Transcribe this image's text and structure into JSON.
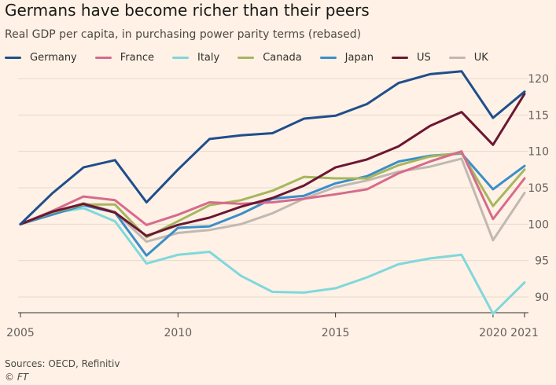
{
  "chart_data": {
    "type": "line",
    "title": "Germans have become richer than their peers",
    "subtitle": "Real GDP per capita, in purchasing power parity terms (rebased)",
    "x": [
      2005,
      2006,
      2007,
      2008,
      2009,
      2010,
      2011,
      2012,
      2013,
      2014,
      2015,
      2016,
      2017,
      2018,
      2019,
      2020,
      2021
    ],
    "x_ticks": [
      "2005",
      "2010",
      "2015",
      "2020",
      "2021"
    ],
    "y_ticks": [
      "90",
      "95",
      "100",
      "105",
      "110",
      "115",
      "120"
    ],
    "ylim": [
      88,
      121
    ],
    "xlabel": "",
    "ylabel": "",
    "grid": "horizontal",
    "series": [
      {
        "name": "Italy",
        "color": "#7fd8dc",
        "values": [
          100,
          101.5,
          102.2,
          100.4,
          94.6,
          95.8,
          96.2,
          92.9,
          90.7,
          90.6,
          91.2,
          92.7,
          94.5,
          95.3,
          95.8,
          87.7,
          92.0
        ]
      },
      {
        "name": "UK",
        "color": "#c1b8b2",
        "values": [
          100,
          101.4,
          102.9,
          101.7,
          97.6,
          98.8,
          99.2,
          100.0,
          101.5,
          103.5,
          105.1,
          106.0,
          107.2,
          107.9,
          109.0,
          97.8,
          104.3
        ]
      },
      {
        "name": "Japan",
        "color": "#3a8ec9",
        "values": [
          100,
          101.3,
          102.6,
          101.6,
          95.7,
          99.5,
          99.7,
          101.4,
          103.5,
          103.9,
          105.6,
          106.6,
          108.6,
          109.4,
          109.7,
          104.8,
          108.0
        ]
      },
      {
        "name": "Canada",
        "color": "#a5b75d",
        "values": [
          100,
          101.6,
          102.7,
          102.7,
          98.2,
          100.4,
          102.6,
          103.3,
          104.6,
          106.5,
          106.3,
          106.3,
          108.1,
          109.3,
          109.8,
          102.5,
          107.5
        ]
      },
      {
        "name": "France",
        "color": "#d66b8c",
        "values": [
          100,
          101.8,
          103.8,
          103.3,
          99.9,
          101.3,
          103.0,
          102.8,
          103.0,
          103.5,
          104.1,
          104.8,
          107.0,
          108.6,
          110.0,
          100.7,
          106.3
        ]
      },
      {
        "name": "US",
        "color": "#6b1734",
        "values": [
          100,
          101.7,
          102.8,
          101.6,
          98.4,
          99.9,
          100.9,
          102.4,
          103.6,
          105.3,
          107.8,
          108.9,
          110.7,
          113.5,
          115.4,
          110.9,
          117.9
        ]
      },
      {
        "name": "Germany",
        "color": "#1f4e8c",
        "values": [
          100,
          104.2,
          107.8,
          108.8,
          103.0,
          107.5,
          111.7,
          112.2,
          112.5,
          114.5,
          114.9,
          116.5,
          119.4,
          120.6,
          121.0,
          114.6,
          118.2
        ]
      }
    ],
    "legend_order": [
      "Germany",
      "France",
      "Italy",
      "Canada",
      "Japan",
      "US",
      "UK"
    ],
    "legend_position": "top"
  },
  "footer": {
    "sources": "Sources: OECD, Refinitiv",
    "copyright": "© FT"
  }
}
